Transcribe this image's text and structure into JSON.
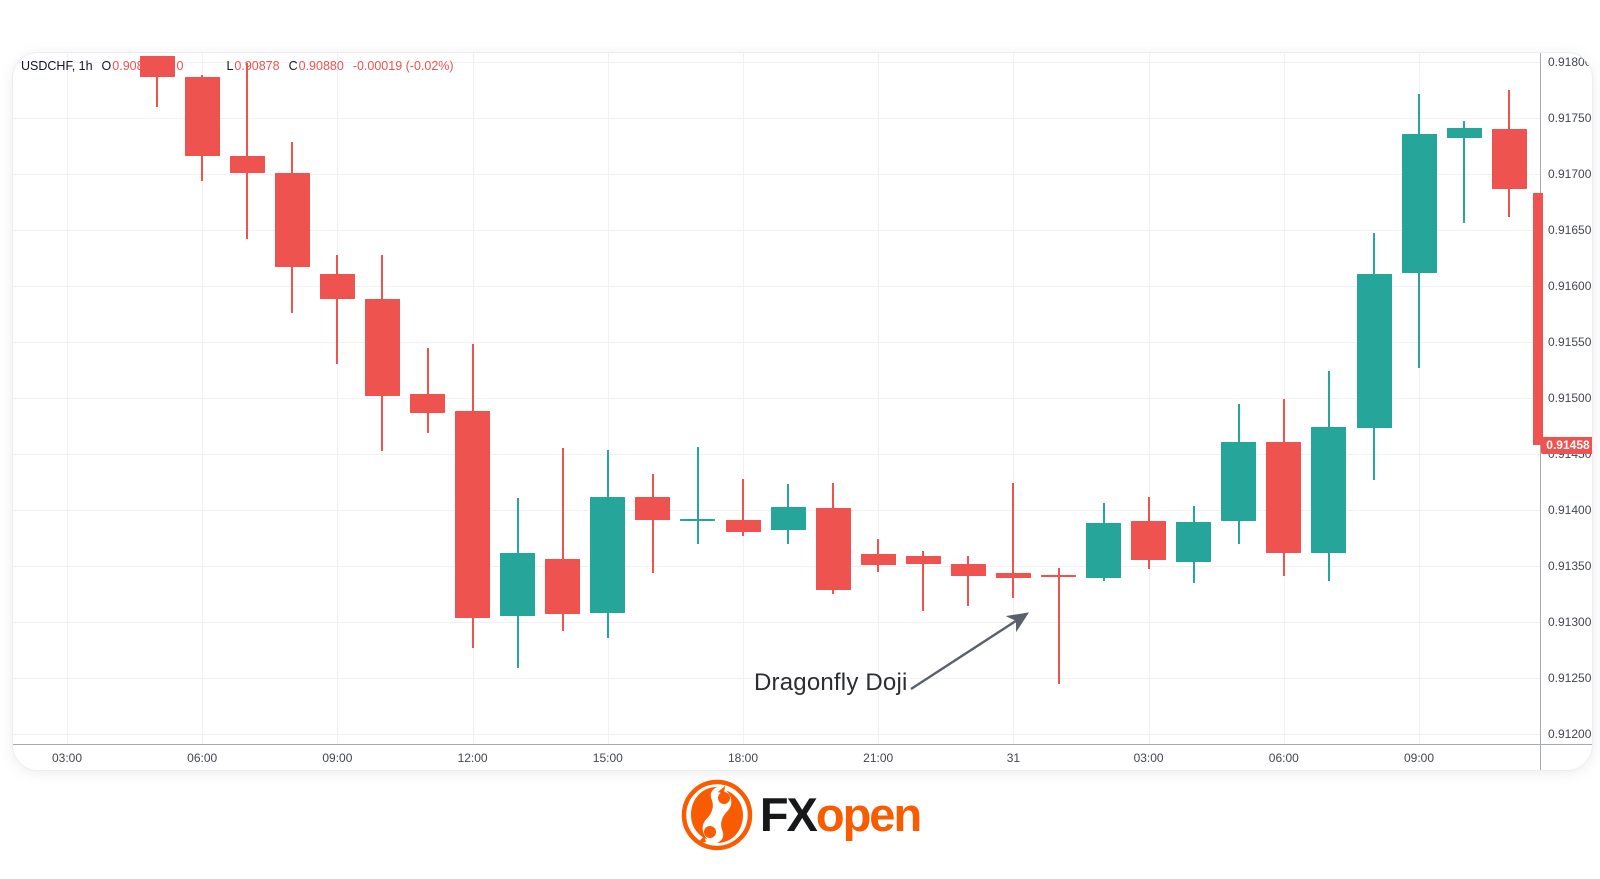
{
  "header": {
    "symbol": "USDCHF, 1h",
    "open_label": "O",
    "open": "0.90899",
    "high_label": "H",
    "high": "0",
    "low_label": "L",
    "low": "0.90878",
    "close_label": "C",
    "close": "0.90880",
    "change": "-0.00019 (-0.02%)"
  },
  "annotation": {
    "text": "Dragonfly Doji"
  },
  "price_axis": {
    "ticks": [
      "0.91800",
      "0.91750",
      "0.91700",
      "0.91650",
      "0.91600",
      "0.91550",
      "0.91500",
      "0.91450",
      "0.91400",
      "0.91350",
      "0.91300",
      "0.91250",
      "0.91200"
    ],
    "last_price": "0.91458"
  },
  "time_axis": {
    "labels": [
      "03:00",
      "06:00",
      "09:00",
      "12:00",
      "15:00",
      "18:00",
      "21:00",
      "31",
      "03:00",
      "06:00",
      "09:00"
    ]
  },
  "colors": {
    "up": "#26a69a",
    "down": "#ef5350",
    "badge": "#ef5350",
    "grid": "#f0f1f5",
    "arrow": "#5a616c",
    "logo_orange": "#f85b00"
  },
  "logo": {
    "fx": "FX",
    "open": "open"
  },
  "chart_data": {
    "type": "candlestick",
    "symbol": "USDCHF",
    "interval": "1h",
    "title": "USDCHF 1h candlestick chart with Dragonfly Doji annotation",
    "ylim": [
      0.912,
      0.918
    ],
    "grid": true,
    "annotation_target_index": 20,
    "candles": [
      {
        "t": "05:00",
        "o": 0.91805,
        "h": 0.91805,
        "l": 0.9176,
        "c": 0.91787
      },
      {
        "t": "06:00",
        "o": 0.91787,
        "h": 0.91788,
        "l": 0.91694,
        "c": 0.91716
      },
      {
        "t": "07:00",
        "o": 0.91716,
        "h": 0.91799,
        "l": 0.91642,
        "c": 0.91701
      },
      {
        "t": "08:00",
        "o": 0.91701,
        "h": 0.91729,
        "l": 0.91576,
        "c": 0.91617
      },
      {
        "t": "09:00",
        "o": 0.91611,
        "h": 0.91628,
        "l": 0.9153,
        "c": 0.91588
      },
      {
        "t": "10:00",
        "o": 0.91588,
        "h": 0.91628,
        "l": 0.91453,
        "c": 0.91502
      },
      {
        "t": "11:00",
        "o": 0.91504,
        "h": 0.91545,
        "l": 0.91469,
        "c": 0.91487
      },
      {
        "t": "12:00",
        "o": 0.91488,
        "h": 0.91548,
        "l": 0.91277,
        "c": 0.91304
      },
      {
        "t": "13:00",
        "o": 0.91305,
        "h": 0.91411,
        "l": 0.91259,
        "c": 0.91362
      },
      {
        "t": "14:00",
        "o": 0.91356,
        "h": 0.91455,
        "l": 0.91292,
        "c": 0.91307
      },
      {
        "t": "15:00",
        "o": 0.91308,
        "h": 0.91454,
        "l": 0.91286,
        "c": 0.91412
      },
      {
        "t": "16:00",
        "o": 0.91412,
        "h": 0.91432,
        "l": 0.91344,
        "c": 0.91391
      },
      {
        "t": "17:00",
        "o": 0.91391,
        "h": 0.91456,
        "l": 0.9137,
        "c": 0.91392
      },
      {
        "t": "18:00",
        "o": 0.91391,
        "h": 0.91428,
        "l": 0.91377,
        "c": 0.9138
      },
      {
        "t": "19:00",
        "o": 0.91382,
        "h": 0.91423,
        "l": 0.9137,
        "c": 0.91403
      },
      {
        "t": "20:00",
        "o": 0.91402,
        "h": 0.91424,
        "l": 0.91325,
        "c": 0.91329
      },
      {
        "t": "21:00",
        "o": 0.91361,
        "h": 0.91374,
        "l": 0.91345,
        "c": 0.91351
      },
      {
        "t": "22:00",
        "o": 0.91359,
        "h": 0.91363,
        "l": 0.9131,
        "c": 0.91352
      },
      {
        "t": "23:00",
        "o": 0.91352,
        "h": 0.91359,
        "l": 0.91314,
        "c": 0.91341
      },
      {
        "t": "00:00",
        "o": 0.91344,
        "h": 0.91424,
        "l": 0.91321,
        "c": 0.91339
      },
      {
        "t": "01:00",
        "o": 0.91342,
        "h": 0.91348,
        "l": 0.91245,
        "c": 0.9134
      },
      {
        "t": "02:00",
        "o": 0.91339,
        "h": 0.91406,
        "l": 0.91337,
        "c": 0.91388
      },
      {
        "t": "03:00",
        "o": 0.9139,
        "h": 0.91412,
        "l": 0.91347,
        "c": 0.91355
      },
      {
        "t": "04:00",
        "o": 0.91354,
        "h": 0.91404,
        "l": 0.91335,
        "c": 0.91389
      },
      {
        "t": "05:00",
        "o": 0.9139,
        "h": 0.91495,
        "l": 0.9137,
        "c": 0.91461
      },
      {
        "t": "06:00",
        "o": 0.91461,
        "h": 0.91499,
        "l": 0.91341,
        "c": 0.91362
      },
      {
        "t": "07:00",
        "o": 0.91362,
        "h": 0.91524,
        "l": 0.91337,
        "c": 0.91474
      },
      {
        "t": "08:00",
        "o": 0.91473,
        "h": 0.91647,
        "l": 0.91427,
        "c": 0.91611
      },
      {
        "t": "09:00",
        "o": 0.91612,
        "h": 0.91771,
        "l": 0.91527,
        "c": 0.91736
      },
      {
        "t": "10:00",
        "o": 0.91732,
        "h": 0.91747,
        "l": 0.91656,
        "c": 0.91741
      },
      {
        "t": "11:00",
        "o": 0.9174,
        "h": 0.91775,
        "l": 0.91662,
        "c": 0.91687
      }
    ],
    "partial_bar": {
      "from": 0.91683,
      "to": 0.91458
    },
    "last_price": 0.91458
  }
}
